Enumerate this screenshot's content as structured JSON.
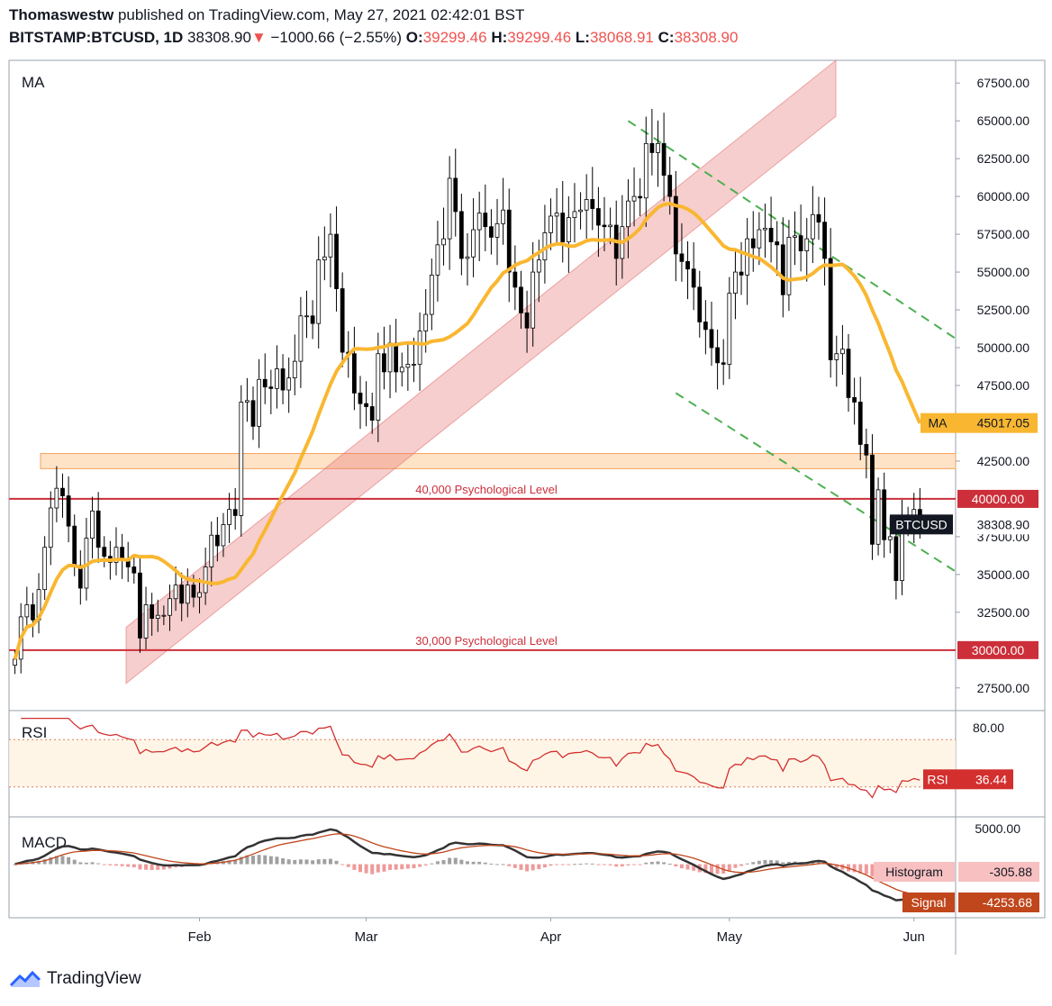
{
  "header": {
    "author": "Thomaswestw",
    "published": "published on TradingView.com, May 27, 2021 02:42:01 BST",
    "symbol": "BITSTAMP:BTCUSD, 1D",
    "last": "38308.90",
    "arrow": "▼",
    "change": "−1000.66 (−2.55%)",
    "o_label": "O:",
    "o": "39299.46",
    "h_label": "H:",
    "h": "39299.46",
    "l_label": "L:",
    "l": "38068.91",
    "c_label": "C:",
    "c": "38308.90"
  },
  "footer": {
    "brand": "TradingView"
  },
  "colors": {
    "up": "#ffffff",
    "down": "#000000",
    "ma": "#f9b731",
    "level": "#cc2f3a",
    "channel": "#e57373",
    "zone": "#ffcc99",
    "dashed": "#4caf50",
    "rsi": "#d32f2f",
    "macd": "#333333",
    "signal": "#c0461b"
  },
  "chart_data": [
    {
      "type": "candlestick",
      "pane": "price",
      "title": "MA",
      "x_axis_labels": [
        "Feb",
        "Mar",
        "Apr",
        "May",
        "Jun"
      ],
      "y_ticks": [
        "67500.00",
        "65000.00",
        "62500.00",
        "60000.00",
        "57500.00",
        "55000.00",
        "52500.00",
        "50000.00",
        "47500.00",
        "42500.00",
        "37500.00",
        "35000.00",
        "32500.00",
        "27500.00"
      ],
      "ylim": [
        26000,
        69000
      ],
      "xlim_dates": [
        "2020-12-31",
        "2021-06-08"
      ],
      "series_note": "daily OHLC, Jan 1 2021 to May 27 2021",
      "close": [
        29400,
        32200,
        33000,
        32000,
        34000,
        36800,
        39400,
        40700,
        40200,
        38200,
        35600,
        34100,
        37400,
        39200,
        36800,
        36200,
        35800,
        36800,
        36000,
        35500,
        35100,
        30800,
        33000,
        32100,
        32300,
        32300,
        33400,
        34300,
        33100,
        34300,
        33500,
        33800,
        35500,
        37600,
        36900,
        38300,
        39300,
        38900,
        46400,
        46500,
        44800,
        47900,
        47400,
        47300,
        48600,
        47200,
        48000,
        49100,
        52100,
        52100,
        51600,
        55800,
        56000,
        57500,
        53900,
        49700,
        49600,
        47000,
        46300,
        46100,
        45200,
        49600,
        48400,
        50300,
        48400,
        48700,
        48900,
        48900,
        51100,
        52200,
        54800,
        56800,
        57200,
        61200,
        59000,
        55900,
        56000,
        57800,
        58900,
        58000,
        57300,
        58200,
        59100,
        55000,
        54000,
        52300,
        51300,
        55000,
        55800,
        57600,
        58700,
        58900,
        57000,
        58600,
        59000,
        59100,
        59800,
        59200,
        58100,
        58000,
        58100,
        55900,
        58000,
        59700,
        60000,
        59900,
        63500,
        62900,
        63500,
        61400,
        60000,
        56200,
        55700,
        55200,
        54000,
        51700,
        51200,
        50000,
        49000,
        48900,
        53600,
        55000,
        54800,
        57200,
        56600,
        57800,
        57900,
        57000,
        56800,
        53500,
        57300,
        57400,
        56400,
        57200,
        58800,
        58300,
        55900,
        49200,
        49600,
        49900,
        46700,
        46400,
        43600,
        42900,
        37000,
        40600,
        37300,
        37500,
        34600,
        38700,
        38300,
        39300,
        38300
      ],
      "ma_last": "45017.05",
      "levels": [
        {
          "value": 40000,
          "label": "40,000 Psychological Level",
          "tag": "40000.00"
        },
        {
          "value": 30000,
          "label": "30,000 Psychological Level",
          "tag": "30000.00"
        }
      ],
      "zone": [
        42000,
        43000
      ],
      "tags": [
        {
          "name": "MA",
          "value": "45017.05"
        },
        {
          "name": "BTCUSD",
          "value": "38308.90"
        }
      ]
    },
    {
      "type": "line",
      "pane": "rsi",
      "title": "RSI",
      "y_ticks": [
        "80.00"
      ],
      "band": [
        30,
        70
      ],
      "last": "36.44"
    },
    {
      "type": "macd",
      "pane": "macd",
      "title": "MACD",
      "y_ticks": [
        "5000.00"
      ],
      "histogram_label": "Histogram",
      "histogram_last": "-305.88",
      "signal_label": "Signal",
      "signal_last": "-4253.68"
    }
  ]
}
